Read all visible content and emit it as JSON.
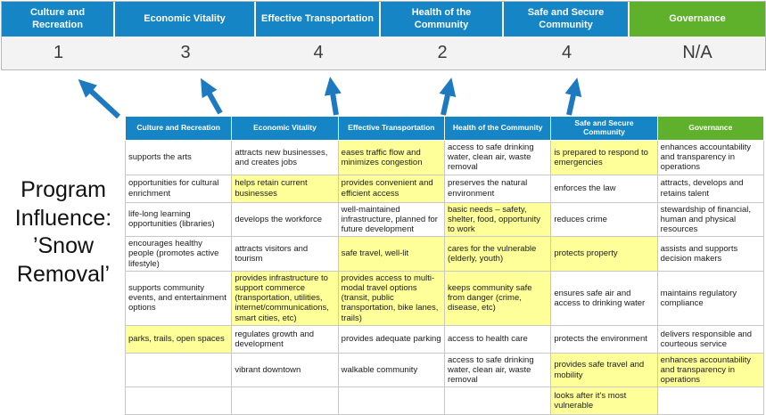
{
  "program_label": "Program Influence: ’Snow Removal’",
  "colors": {
    "header_blue": "#1585c5",
    "header_green": "#5fb12c",
    "highlight_yellow": "#ffff99",
    "arrow_blue": "#1e7ac0"
  },
  "scoreboard": {
    "columns": [
      {
        "label": "Culture and Recreation",
        "score": "1",
        "color": "blue"
      },
      {
        "label": "Economic Vitality",
        "score": "3",
        "color": "blue"
      },
      {
        "label": "Effective Transportation",
        "score": "4",
        "color": "blue"
      },
      {
        "label": "Health of the Community",
        "score": "2",
        "color": "blue"
      },
      {
        "label": "Safe and Secure Community",
        "score": "4",
        "color": "blue"
      },
      {
        "label": "Governance",
        "score": "N/A",
        "color": "green"
      }
    ]
  },
  "matrix": {
    "headers": [
      {
        "label": "Culture and Recreation",
        "color": "blue"
      },
      {
        "label": "Economic Vitality",
        "color": "blue"
      },
      {
        "label": "Effective Transportation",
        "color": "blue"
      },
      {
        "label": "Health of the Community",
        "color": "blue"
      },
      {
        "label": "Safe and Secure Community",
        "color": "blue"
      },
      {
        "label": "Governance",
        "color": "green"
      }
    ],
    "rows": [
      [
        {
          "text": "supports the arts",
          "highlight": false
        },
        {
          "text": "attracts new businesses, and creates jobs",
          "highlight": false
        },
        {
          "text": "eases traffic flow and minimizes congestion",
          "highlight": true
        },
        {
          "text": "access to safe drinking water, clean air, waste removal",
          "highlight": false
        },
        {
          "text": "is prepared to respond to emergencies",
          "highlight": true
        },
        {
          "text": "enhances accountability and transparency in operations",
          "highlight": false
        }
      ],
      [
        {
          "text": "opportunities for cultural enrichment",
          "highlight": false
        },
        {
          "text": "helps retain current businesses",
          "highlight": true
        },
        {
          "text": "provides convenient and efficient access",
          "highlight": true
        },
        {
          "text": "preserves the natural environment",
          "highlight": false
        },
        {
          "text": "enforces the law",
          "highlight": false
        },
        {
          "text": "attracts, develops and retains talent",
          "highlight": false
        }
      ],
      [
        {
          "text": "life-long learning opportunities (libraries)",
          "highlight": false
        },
        {
          "text": "develops the workforce",
          "highlight": false
        },
        {
          "text": "well-maintained infrastructure, planned for future development",
          "highlight": false
        },
        {
          "text": "basic needs – safety, shelter, food, opportunity to work",
          "highlight": true
        },
        {
          "text": "reduces crime",
          "highlight": false
        },
        {
          "text": "stewardship of financial, human and physical resources",
          "highlight": false
        }
      ],
      [
        {
          "text": "encourages healthy people (promotes active lifestyle)",
          "highlight": false
        },
        {
          "text": "attracts visitors and tourism",
          "highlight": false
        },
        {
          "text": "safe travel, well-lit",
          "highlight": true
        },
        {
          "text": "cares for the vulnerable (elderly, youth)",
          "highlight": true
        },
        {
          "text": "protects property",
          "highlight": true
        },
        {
          "text": "assists and supports decision makers",
          "highlight": false
        }
      ],
      [
        {
          "text": "supports community events, and entertainment options",
          "highlight": false
        },
        {
          "text": "provides infrastructure to support commerce (transportation, utilities, internet/communications, smart cities, etc)",
          "highlight": true
        },
        {
          "text": "provides access to multi-modal travel options (transit, public transportation, bike lanes, trails)",
          "highlight": true
        },
        {
          "text": "keeps community safe from danger (crime, disease, etc)",
          "highlight": true
        },
        {
          "text": "ensures safe air and access to drinking water",
          "highlight": false
        },
        {
          "text": "maintains regulatory compliance",
          "highlight": false
        }
      ],
      [
        {
          "text": "parks, trails, open spaces",
          "highlight": true
        },
        {
          "text": "regulates growth and development",
          "highlight": false
        },
        {
          "text": "provides adequate parking",
          "highlight": false
        },
        {
          "text": "access to health care",
          "highlight": false
        },
        {
          "text": "protects the environment",
          "highlight": false
        },
        {
          "text": "delivers responsible and courteous service",
          "highlight": false
        }
      ],
      [
        {
          "text": "",
          "highlight": false
        },
        {
          "text": "vibrant downtown",
          "highlight": false
        },
        {
          "text": "walkable community",
          "highlight": false
        },
        {
          "text": "access to safe drinking water, clean air, waste removal",
          "highlight": false
        },
        {
          "text": "provides safe travel and mobility",
          "highlight": true
        },
        {
          "text": "enhances accountability and transparency in operations",
          "highlight": true
        }
      ],
      [
        {
          "text": "",
          "highlight": false
        },
        {
          "text": "",
          "highlight": false
        },
        {
          "text": "",
          "highlight": false
        },
        {
          "text": "",
          "highlight": false
        },
        {
          "text": "looks after it's most vulnerable",
          "highlight": true
        },
        {
          "text": "",
          "highlight": false
        }
      ]
    ]
  }
}
